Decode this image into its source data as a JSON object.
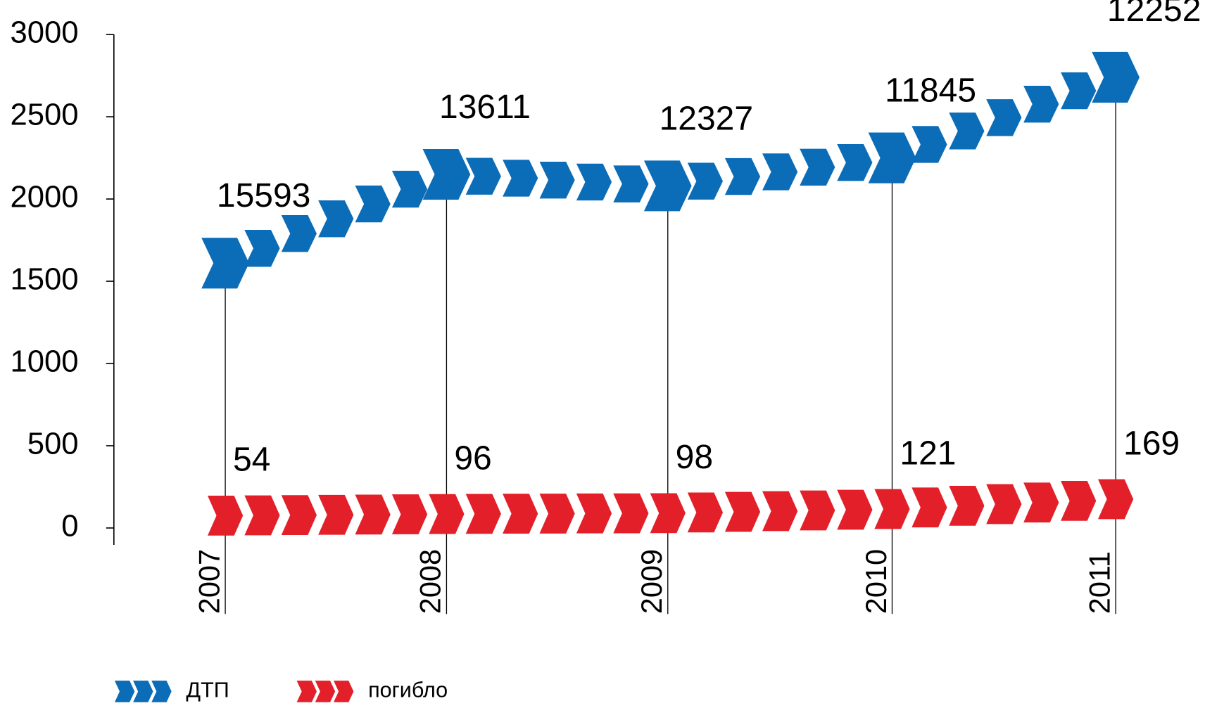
{
  "chart_data": {
    "type": "chevron-line",
    "categories": [
      "2007",
      "2008",
      "2009",
      "2010",
      "2011"
    ],
    "ylim": [
      0,
      3000
    ],
    "yticks": [
      0,
      500,
      1000,
      1500,
      2000,
      2500,
      3000
    ],
    "series": [
      {
        "name": "ДТП",
        "color": "#0b6cb8",
        "values": [
          1610,
          2150,
          2080,
          2250,
          2740
        ],
        "point_labels": [
          "15593",
          "13611",
          "12327",
          "11845",
          "12252"
        ]
      },
      {
        "name": "погибло",
        "color": "#e3202a",
        "values": [
          75,
          85,
          90,
          115,
          175
        ],
        "point_labels": [
          "54",
          "96",
          "98",
          "121",
          "169"
        ]
      }
    ]
  }
}
